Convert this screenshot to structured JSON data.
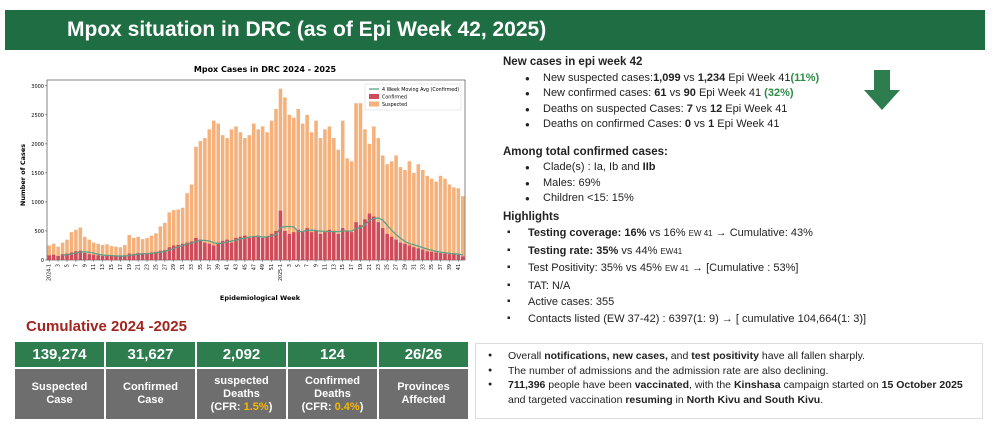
{
  "header": {
    "title": "Mpox situation in DRC (as of Epi Week 42, 2025)"
  },
  "chart_data": {
    "type": "bar",
    "title": "Mpox Cases in DRC 2024 - 2025",
    "x_label": "Epidemiological Week",
    "y_label": "Number of Cases",
    "categories": [
      "2024-1",
      null,
      "3",
      null,
      "5",
      null,
      "7",
      null,
      "9",
      null,
      "11",
      null,
      "13",
      null,
      "15",
      null,
      "17",
      null,
      "19",
      null,
      "21",
      null,
      "23",
      null,
      "25",
      null,
      "27",
      null,
      "29",
      null,
      "31",
      null,
      "33",
      null,
      "35",
      null,
      "37",
      null,
      "39",
      null,
      "41",
      null,
      "43",
      null,
      "45",
      null,
      "47",
      null,
      "49",
      null,
      "51",
      null,
      "2025-1",
      null,
      "3",
      null,
      "5",
      null,
      "7",
      null,
      "9",
      null,
      "11",
      null,
      "13",
      null,
      "15",
      null,
      "17",
      null,
      "19",
      null,
      "21",
      null,
      "23",
      null,
      "25",
      null,
      "27",
      null,
      "29",
      null,
      "31",
      null,
      "33",
      null,
      "35",
      null,
      "37",
      null,
      "39",
      null,
      "41",
      null
    ],
    "series": [
      {
        "name": "4 Week Moving Avg (Confirmed)",
        "type": "line",
        "color": "#5f9f86",
        "values": [
          null,
          null,
          null,
          85,
          93,
          103,
          123,
          138,
          140,
          133,
          118,
          98,
          85,
          80,
          75,
          70,
          68,
          68,
          78,
          88,
          98,
          110,
          108,
          115,
          125,
          133,
          150,
          173,
          200,
          225,
          253,
          273,
          290,
          320,
          338,
          338,
          328,
          295,
          283,
          290,
          315,
          328,
          340,
          365,
          375,
          395,
          405,
          405,
          395,
          400,
          413,
          438,
          560,
          575,
          575,
          570,
          488,
          488,
          513,
          513,
          508,
          495,
          495,
          488,
          488,
          488,
          500,
          500,
          495,
          545,
          558,
          608,
          688,
          713,
          725,
          688,
          600,
          513,
          438,
          375,
          320,
          283,
          263,
          238,
          213,
          188,
          168,
          150,
          135,
          125,
          115,
          108,
          100,
          88
        ]
      },
      {
        "name": "Confirmed",
        "type": "bar",
        "color": "#cf4a5a",
        "values": [
          80,
          90,
          70,
          100,
          110,
          130,
          150,
          160,
          120,
          100,
          90,
          80,
          70,
          80,
          70,
          60,
          60,
          80,
          110,
          100,
          120,
          110,
          100,
          130,
          140,
          160,
          170,
          220,
          250,
          260,
          280,
          300,
          320,
          380,
          350,
          300,
          280,
          250,
          300,
          330,
          350,
          300,
          380,
          400,
          420,
          380,
          400,
          420,
          380,
          400,
          450,
          500,
          850,
          500,
          450,
          480,
          520,
          500,
          550,
          480,
          500,
          450,
          480,
          520,
          500,
          450,
          550,
          500,
          480,
          650,
          600,
          700,
          800,
          750,
          650,
          550,
          450,
          400,
          350,
          300,
          280,
          250,
          220,
          200,
          180,
          150,
          140,
          130,
          120,
          110,
          100,
          100,
          90,
          61
        ]
      },
      {
        "name": "Suspected",
        "type": "bar",
        "color": "#f5b17c",
        "values": [
          250,
          280,
          230,
          300,
          350,
          480,
          520,
          560,
          400,
          350,
          300,
          280,
          260,
          270,
          240,
          230,
          220,
          260,
          430,
          380,
          400,
          360,
          380,
          420,
          460,
          580,
          640,
          820,
          860,
          870,
          900,
          1150,
          1300,
          1950,
          2050,
          2100,
          2250,
          2400,
          2350,
          2150,
          2100,
          2250,
          2300,
          2200,
          2100,
          2150,
          2350,
          2250,
          2300,
          2200,
          2400,
          2600,
          2950,
          2800,
          2500,
          2450,
          2600,
          2350,
          2500,
          2200,
          2400,
          2100,
          2250,
          2300,
          2100,
          1900,
          2400,
          1750,
          1700,
          2700,
          2700,
          2250,
          2000,
          2300,
          2100,
          1800,
          1650,
          1700,
          1800,
          1600,
          1550,
          1700,
          1500,
          1650,
          1550,
          1450,
          1400,
          1350,
          1450,
          1400,
          1300,
          1250,
          1234,
          1099
        ]
      }
    ],
    "ylim": [
      0,
      3100
    ],
    "yticks": [
      0,
      500,
      1000,
      1500,
      2000,
      2500,
      3000
    ],
    "grid": false,
    "legend": "upper right"
  },
  "new_cases": {
    "heading": "New cases in epi week 42",
    "items": [
      [
        {
          "text": "New suspected cases:"
        },
        {
          "text": "1,099",
          "style": "bold"
        },
        {
          "text": " vs "
        },
        {
          "text": "1,234",
          "style": "bold"
        },
        {
          "text": " Epi Week 41"
        },
        {
          "text": "(11%)",
          "style": "green"
        }
      ],
      [
        {
          "text": "New confirmed cases: "
        },
        {
          "text": "61",
          "style": "bold"
        },
        {
          "text": " vs "
        },
        {
          "text": "90",
          "style": "bold"
        },
        {
          "text": " Epi Week 41 "
        },
        {
          "text": "(32%)",
          "style": "green"
        }
      ],
      [
        {
          "text": "Deaths on suspected Cases: "
        },
        {
          "text": "7",
          "style": "bold"
        },
        {
          "text": " vs "
        },
        {
          "text": "12",
          "style": "bold"
        },
        {
          "text": " Epi Week 41"
        }
      ],
      [
        {
          "text": "Deaths on confirmed Cases: "
        },
        {
          "text": "0",
          "style": "bold"
        },
        {
          "text": " vs "
        },
        {
          "text": "1",
          "style": "bold"
        },
        {
          "text": " Epi Week 41"
        }
      ]
    ]
  },
  "confirmed_summary": {
    "heading": "Among total confirmed cases:",
    "items": [
      [
        {
          "text": "Clade(s) : Ia, Ib and "
        },
        {
          "text": "IIb",
          "style": "bold"
        }
      ],
      [
        {
          "text": "Males: 69%"
        }
      ],
      [
        {
          "text": "Children <15: 15%"
        }
      ]
    ]
  },
  "highlights": {
    "heading": "Highlights",
    "items": [
      [
        {
          "text": "Testing coverage: 16%",
          "style": "bold"
        },
        {
          "text": " vs 16% "
        },
        {
          "text": "EW 41",
          "style": "small"
        },
        {
          "text": " →  Cumulative: 43%"
        }
      ],
      [
        {
          "text": "Testing rate: 35%",
          "style": "bold"
        },
        {
          "text": " vs 44% "
        },
        {
          "text": "EW41",
          "style": "small"
        }
      ],
      [
        {
          "text": "Test Positivity: 35% vs 45% "
        },
        {
          "text": "EW 41",
          "style": "small"
        },
        {
          "text": " →    [Cumulative : 53%]"
        }
      ],
      [
        {
          "text": "TAT:  N/A"
        }
      ],
      [
        {
          "text": "Active cases: 355"
        }
      ],
      [
        {
          "text": "Contacts listed (EW 37-42) : 6397(1: 9) → [ cumulative  104,664(1: 3)]"
        }
      ]
    ]
  },
  "cumulative": {
    "title": "Cumulative 2024 -2025",
    "cards": [
      {
        "value": "139,274",
        "lines": [
          [
            {
              "text": "Suspected"
            }
          ],
          [
            {
              "text": "Case"
            }
          ]
        ]
      },
      {
        "value": "31,627",
        "lines": [
          [
            {
              "text": "Confirmed"
            }
          ],
          [
            {
              "text": "Case"
            }
          ]
        ]
      },
      {
        "value": "2,092",
        "lines": [
          [
            {
              "text": "suspected"
            }
          ],
          [
            {
              "text": "Deaths"
            }
          ],
          [
            {
              "text": "(CFR: "
            },
            {
              "text": "1.5%",
              "style": "orange"
            },
            {
              "text": ")"
            }
          ]
        ]
      },
      {
        "value": "124",
        "lines": [
          [
            {
              "text": "Confirmed"
            }
          ],
          [
            {
              "text": "Deaths"
            }
          ],
          [
            {
              "text": "(CFR: "
            },
            {
              "text": "0.4%",
              "style": "orange"
            },
            {
              "text": ")"
            }
          ]
        ]
      },
      {
        "value": "26/26",
        "lines": [
          [
            {
              "text": "Provinces"
            }
          ],
          [
            {
              "text": "Affected"
            }
          ]
        ]
      }
    ]
  },
  "notes": {
    "items": [
      [
        {
          "text": "Overall "
        },
        {
          "text": "notifications, new cases,",
          "style": "bold"
        },
        {
          "text": " and "
        },
        {
          "text": "test positivity",
          "style": "bold"
        },
        {
          "text": " have all fallen sharply."
        }
      ],
      [
        {
          "text": "The number of admissions and the admission rate are also declining."
        }
      ],
      [
        {
          "text": "711,396",
          "style": "bold"
        },
        {
          "text": " people have been "
        },
        {
          "text": "vaccinated",
          "style": "bold"
        },
        {
          "text": ", with the "
        },
        {
          "text": "Kinshasa",
          "style": "bold"
        },
        {
          "text": " campaign started on "
        },
        {
          "text": "15 October 2025",
          "style": "bold"
        },
        {
          "text": " and targeted vaccination "
        },
        {
          "text": "resuming",
          "style": "bold"
        },
        {
          "text": " in "
        },
        {
          "text": "North Kivu and South Kivu",
          "style": "bold"
        },
        {
          "text": "."
        }
      ]
    ]
  }
}
